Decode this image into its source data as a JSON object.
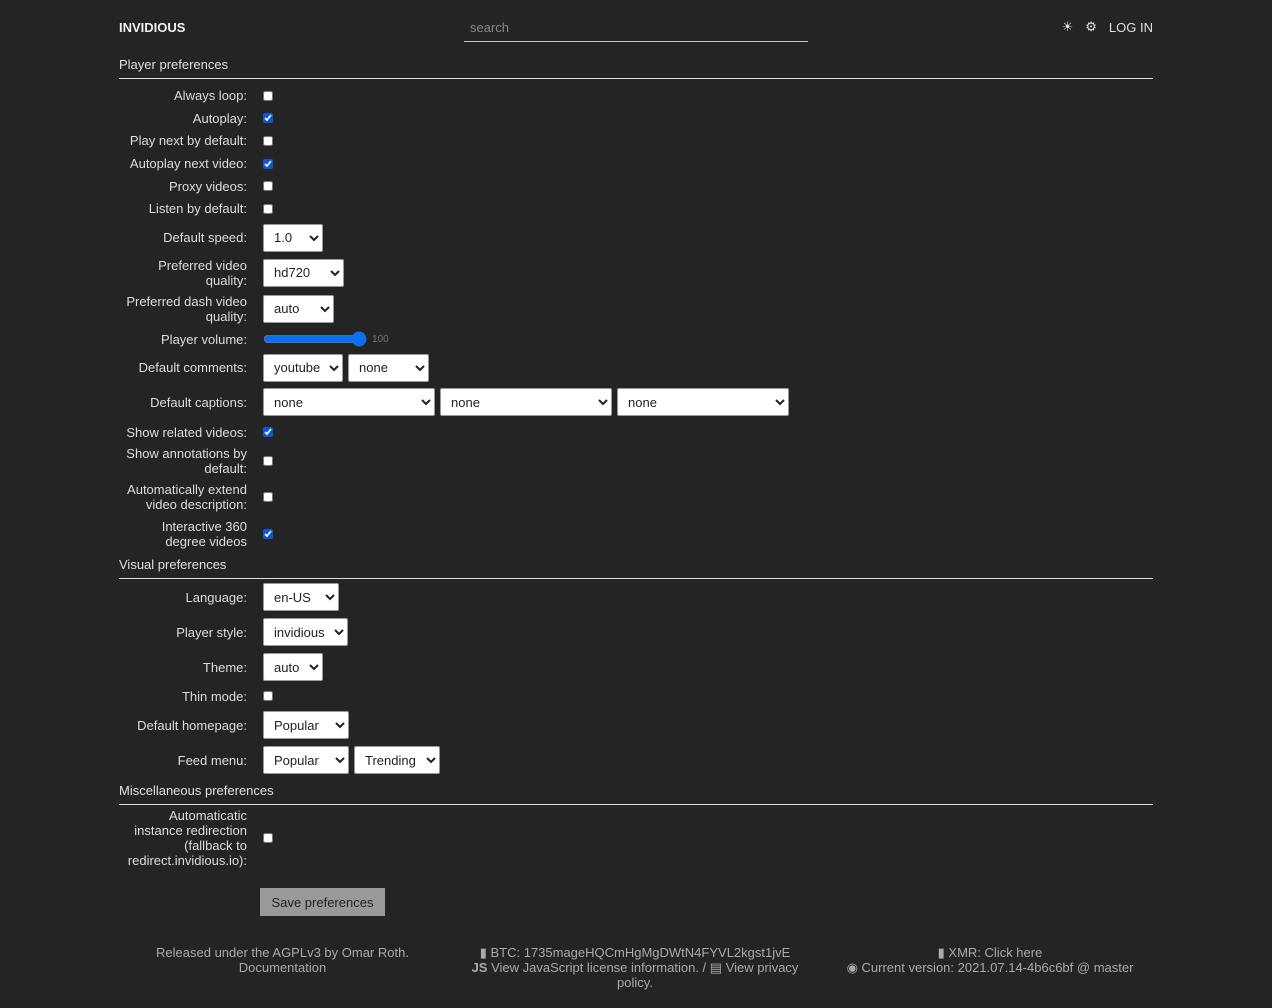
{
  "header": {
    "brand": "INVIDIOUS",
    "search_placeholder": "search",
    "theme_icon": "sun-icon",
    "settings_icon": "gear-icon",
    "login": "LOG IN"
  },
  "player": {
    "title": "Player preferences",
    "always_loop": {
      "label": "Always loop:",
      "checked": false
    },
    "autoplay": {
      "label": "Autoplay:",
      "checked": true
    },
    "play_next": {
      "label": "Play next by default:",
      "checked": false
    },
    "autoplay_next": {
      "label": "Autoplay next video:",
      "checked": true
    },
    "proxy": {
      "label": "Proxy videos:",
      "checked": false
    },
    "listen": {
      "label": "Listen by default:",
      "checked": false
    },
    "speed": {
      "label": "Default speed:",
      "value": "1.0"
    },
    "quality": {
      "label": "Preferred video quality:",
      "value": "hd720"
    },
    "dash": {
      "label": "Preferred dash video quality:",
      "value": "auto"
    },
    "volume": {
      "label": "Player volume:",
      "value": "100"
    },
    "comments": {
      "label": "Default comments:",
      "values": [
        "youtube",
        "none"
      ]
    },
    "captions": {
      "label": "Default captions:",
      "values": [
        "none",
        "none",
        "none"
      ]
    },
    "related": {
      "label": "Show related videos:",
      "checked": true
    },
    "annotations": {
      "label": "Show annotations by default:",
      "checked": false
    },
    "extend": {
      "label": "Automatically extend video description:",
      "checked": false
    },
    "v360": {
      "label": "Interactive 360 degree videos",
      "checked": true
    }
  },
  "visual": {
    "title": "Visual preferences",
    "language": {
      "label": "Language:",
      "value": "en-US"
    },
    "player_style": {
      "label": "Player style:",
      "value": "invidious"
    },
    "theme": {
      "label": "Theme:",
      "value": "auto"
    },
    "thin": {
      "label": "Thin mode:",
      "checked": false
    },
    "homepage": {
      "label": "Default homepage:",
      "value": "Popular"
    },
    "feed": {
      "label": "Feed menu:",
      "values": [
        "Popular",
        "Trending"
      ]
    }
  },
  "misc": {
    "title": "Miscellaneous preferences",
    "redirect": {
      "label": "Automaticatic instance redirection (fallback to redirect.invidious.io):",
      "checked": false
    }
  },
  "save_label": "Save preferences",
  "footer": {
    "license": "Released under the AGPLv3 by Omar Roth.",
    "docs": "Documentation",
    "btc": "BTC: 1735mageHQCmHgMgDWtN4FYVL2kgst1jvE",
    "js_license": "View JavaScript license information.",
    "sep": " / ",
    "privacy": "View privacy policy.",
    "xmr": "XMR: Click here",
    "version": "Current version: 2021.07.14-4b6c6bf @ master"
  }
}
